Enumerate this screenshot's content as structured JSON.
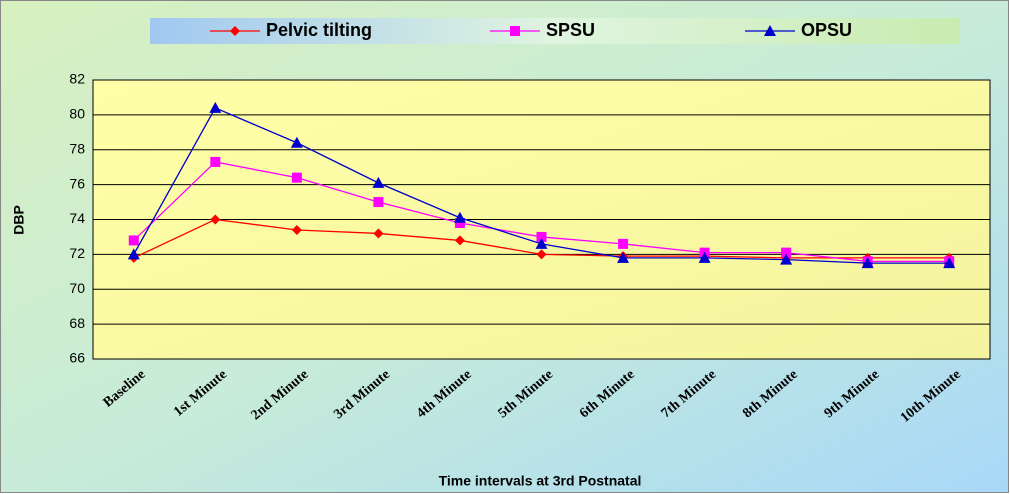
{
  "chart_data": {
    "type": "line",
    "legend": "top",
    "x_label": "Time intervals at 3rd Postnatal",
    "y_label": "DBP",
    "categories": [
      "Baseline",
      "1st Minute",
      "2nd Minute",
      "3rd Minute",
      "4th Minute",
      "5th Minute",
      "6th Minute",
      "7th Minute",
      "8th Minute",
      "9th Minute",
      "10th Minute"
    ],
    "series": [
      {
        "name": "Pelvic tilting",
        "color": "#ff0000",
        "marker": "diamond",
        "values": [
          71.8,
          74.0,
          73.4,
          73.2,
          72.8,
          72.0,
          71.9,
          71.9,
          71.8,
          71.8,
          71.8
        ]
      },
      {
        "name": "SPSU",
        "color": "#ff00ff",
        "marker": "square",
        "values": [
          72.8,
          77.3,
          76.4,
          75.0,
          73.8,
          73.0,
          72.6,
          72.1,
          72.1,
          71.6,
          71.6
        ]
      },
      {
        "name": "OPSU",
        "color": "#0000cc",
        "marker": "triangle",
        "values": [
          72.0,
          80.4,
          78.4,
          76.1,
          74.1,
          72.6,
          71.8,
          71.8,
          71.7,
          71.5,
          71.5
        ]
      }
    ],
    "ylim": [
      66,
      82
    ],
    "yticks": [
      66,
      68,
      70,
      72,
      74,
      76,
      78,
      80,
      82
    ],
    "grid": true
  }
}
